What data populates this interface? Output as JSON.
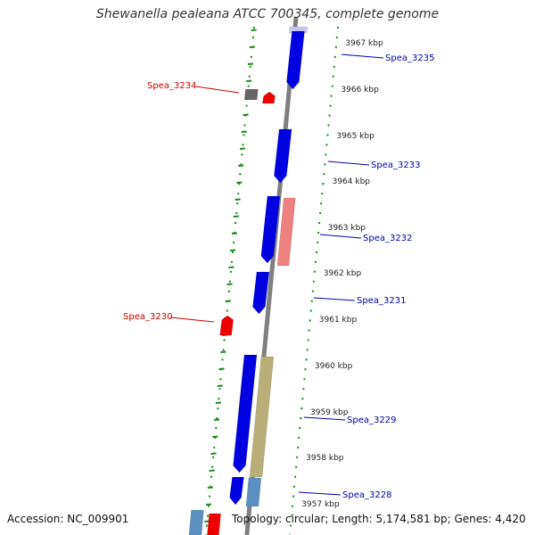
{
  "title": "Shewanella pealeana ATCC 700345, complete genome",
  "accession_text": "Accession: NC_009901",
  "topology_text": "Topology: circular; Length: 5,174,581 bp; Genes: 4,420",
  "colors": {
    "backbone": "#7f7f7f",
    "forward_gene": "#0000e0",
    "reverse_gene": "#ee0000",
    "rna_pink": "#ee8080",
    "olive": "#b8ae78",
    "steel_blue": "#5a8fbf",
    "dark_gray": "#666666",
    "lavender": "#c8c8f5",
    "tick_green": "#1a8a1a",
    "label_blue": "#0000aa",
    "label_red": "#cc0000"
  },
  "ticks": [
    {
      "label": "3967 kbp"
    },
    {
      "label": "3966 kbp"
    },
    {
      "label": "3965 kbp"
    },
    {
      "label": "3964 kbp"
    },
    {
      "label": "3963 kbp"
    },
    {
      "label": "3962 kbp"
    },
    {
      "label": "3961 kbp"
    },
    {
      "label": "3960 kbp"
    },
    {
      "label": "3959 kbp"
    },
    {
      "label": "3958 kbp"
    },
    {
      "label": "3957 kbp"
    }
  ],
  "gene_labels": [
    {
      "name": "Spea_3235",
      "color": "label_blue"
    },
    {
      "name": "Spea_3234",
      "color": "label_red"
    },
    {
      "name": "Spea_3233",
      "color": "label_blue"
    },
    {
      "name": "Spea_3232",
      "color": "label_blue"
    },
    {
      "name": "Spea_3231",
      "color": "label_blue"
    },
    {
      "name": "Spea_3230",
      "color": "label_red"
    },
    {
      "name": "Spea_3229",
      "color": "label_blue"
    },
    {
      "name": "Spea_3228",
      "color": "label_blue"
    }
  ]
}
